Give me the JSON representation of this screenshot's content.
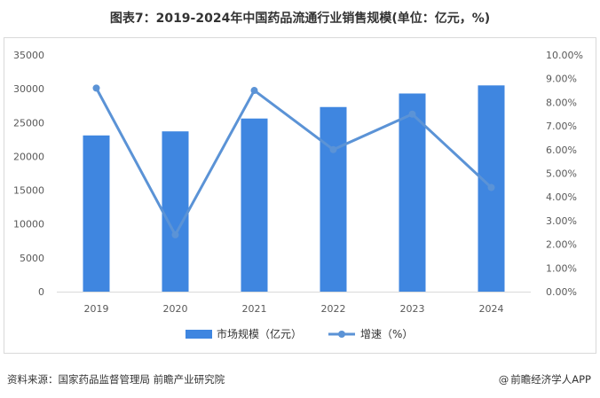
{
  "title": "图表7：2019-2024年中国药品流通行业销售规模(单位：亿元，%)",
  "footer": {
    "source": "资料来源：国家药品监督管理局 前瞻产业研究院",
    "brand_at": "@",
    "brand": "前瞻经济学人APP"
  },
  "colors": {
    "bar": "#3f86e0",
    "line": "#5b93d6",
    "axis": "#d9d9d9",
    "tick_text": "#595959"
  },
  "chart_data": {
    "type": "bar",
    "categories": [
      "2019",
      "2020",
      "2021",
      "2022",
      "2023",
      "2024"
    ],
    "series": [
      {
        "name": "市场规模（亿元）",
        "type": "bar",
        "axis": "left",
        "values": [
          23100,
          23700,
          25600,
          27300,
          29300,
          30500
        ]
      },
      {
        "name": "增速（%）",
        "type": "line",
        "axis": "right",
        "values": [
          8.6,
          2.4,
          8.5,
          6.0,
          7.5,
          4.4
        ]
      }
    ],
    "ylim_left": [
      0,
      35000
    ],
    "yticks_left": [
      "0",
      "5000",
      "10000",
      "15000",
      "20000",
      "25000",
      "30000",
      "35000"
    ],
    "ylim_right": [
      0,
      10
    ],
    "yticks_right": [
      "0.00%",
      "1.00%",
      "2.00%",
      "3.00%",
      "4.00%",
      "5.00%",
      "6.00%",
      "7.00%",
      "8.00%",
      "9.00%",
      "10.00%"
    ],
    "legend_position": "bottom",
    "grid": false
  }
}
